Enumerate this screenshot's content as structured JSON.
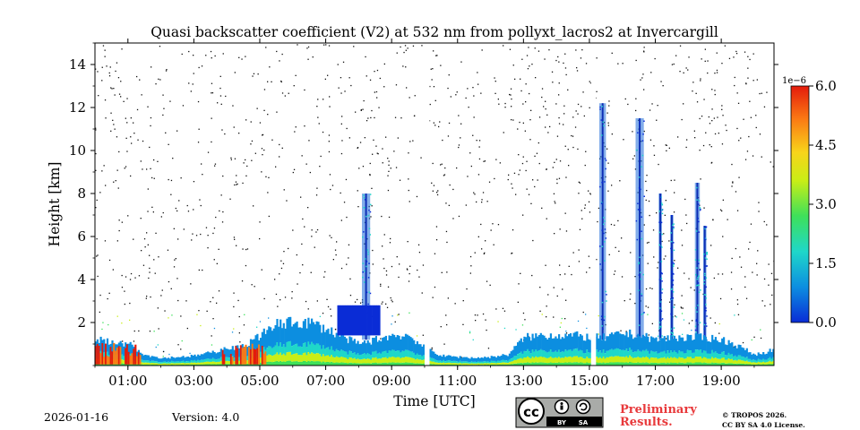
{
  "chart_data": {
    "type": "heatmap",
    "title": "Quasi backscatter coefficient (V2) at 532 nm from pollyxt_lacros2 at Invercargill",
    "xlabel": "Time [UTC]",
    "ylabel": "Height [km]",
    "xlim_hours": [
      0,
      20.6
    ],
    "ylim_km": [
      0,
      15
    ],
    "x_ticks": [
      {
        "value": 1,
        "label": "01:00"
      },
      {
        "value": 3,
        "label": "03:00"
      },
      {
        "value": 5,
        "label": "05:00"
      },
      {
        "value": 7,
        "label": "07:00"
      },
      {
        "value": 9,
        "label": "09:00"
      },
      {
        "value": 11,
        "label": "11:00"
      },
      {
        "value": 13,
        "label": "13:00"
      },
      {
        "value": 15,
        "label": "15:00"
      },
      {
        "value": 17,
        "label": "17:00"
      },
      {
        "value": 19,
        "label": "19:00"
      }
    ],
    "y_ticks": [
      {
        "value": 2,
        "label": "2"
      },
      {
        "value": 4,
        "label": "4"
      },
      {
        "value": 6,
        "label": "6"
      },
      {
        "value": 8,
        "label": "8"
      },
      {
        "value": 10,
        "label": "10"
      },
      {
        "value": 12,
        "label": "12"
      },
      {
        "value": 14,
        "label": "14"
      }
    ],
    "colorbar": {
      "range": [
        0,
        6
      ],
      "exponent_label": "1e−6",
      "ticks": [
        {
          "value": 0,
          "label": "0.0"
        },
        {
          "value": 1.5,
          "label": "1.5"
        },
        {
          "value": 3,
          "label": "3.0"
        },
        {
          "value": 4.5,
          "label": "4.5"
        },
        {
          "value": 6,
          "label": "6.0"
        }
      ],
      "colormap": [
        "#0a2cd6",
        "#0c8ee0",
        "#1fd7c9",
        "#3ee05a",
        "#c9ee16",
        "#f8d41a",
        "#fb7a14",
        "#e41b0b"
      ]
    },
    "surface_layer_top_km": [
      [
        0.0,
        1.2
      ],
      [
        0.5,
        1.1
      ],
      [
        1.0,
        1.0
      ],
      [
        1.5,
        0.5
      ],
      [
        2.0,
        0.35
      ],
      [
        2.5,
        0.4
      ],
      [
        3.0,
        0.45
      ],
      [
        3.5,
        0.6
      ],
      [
        4.0,
        0.8
      ],
      [
        4.5,
        0.9
      ],
      [
        5.0,
        1.4
      ],
      [
        5.5,
        1.9
      ],
      [
        6.0,
        2.0
      ],
      [
        6.5,
        2.0
      ],
      [
        7.0,
        1.7
      ],
      [
        7.5,
        1.3
      ],
      [
        8.0,
        1.0
      ],
      [
        8.5,
        1.2
      ],
      [
        9.0,
        1.4
      ],
      [
        9.5,
        1.4
      ],
      [
        10.0,
        0.8
      ],
      [
        10.5,
        0.45
      ],
      [
        11.0,
        0.4
      ],
      [
        11.5,
        0.35
      ],
      [
        12.0,
        0.4
      ],
      [
        12.5,
        0.5
      ],
      [
        13.0,
        1.3
      ],
      [
        13.5,
        1.4
      ],
      [
        14.0,
        1.4
      ],
      [
        14.5,
        1.4
      ],
      [
        15.0,
        1.3
      ],
      [
        15.5,
        1.3
      ],
      [
        16.0,
        1.5
      ],
      [
        16.5,
        1.4
      ],
      [
        17.0,
        1.2
      ],
      [
        17.5,
        1.3
      ],
      [
        18.0,
        1.3
      ],
      [
        18.5,
        1.3
      ],
      [
        19.0,
        1.2
      ],
      [
        19.5,
        0.9
      ],
      [
        20.0,
        0.5
      ],
      [
        20.5,
        0.7
      ]
    ],
    "cloud_columns": [
      {
        "start_h": 8.1,
        "end_h": 8.35,
        "top_km": 8.0
      },
      {
        "start_h": 15.3,
        "end_h": 15.5,
        "top_km": 12.2
      },
      {
        "start_h": 16.4,
        "end_h": 16.65,
        "top_km": 11.5
      },
      {
        "start_h": 17.1,
        "end_h": 17.2,
        "top_km": 8.0
      },
      {
        "start_h": 17.45,
        "end_h": 17.55,
        "top_km": 7.0
      },
      {
        "start_h": 18.2,
        "end_h": 18.35,
        "top_km": 8.5
      },
      {
        "start_h": 18.45,
        "end_h": 18.55,
        "top_km": 6.5
      }
    ],
    "missing_data_gaps_h": [
      [
        10.0,
        10.15
      ],
      [
        15.05,
        15.2
      ]
    ]
  },
  "footer": {
    "date": "2026-01-16",
    "version": "Version: 4.0",
    "cc_badge": {
      "by": "BY",
      "sa": "SA"
    },
    "preliminary_line1": "Preliminary",
    "preliminary_line2": "Results.",
    "copyright_line1": "© TROPOS 2026.",
    "copyright_line2": "CC BY SA 4.0 License."
  }
}
